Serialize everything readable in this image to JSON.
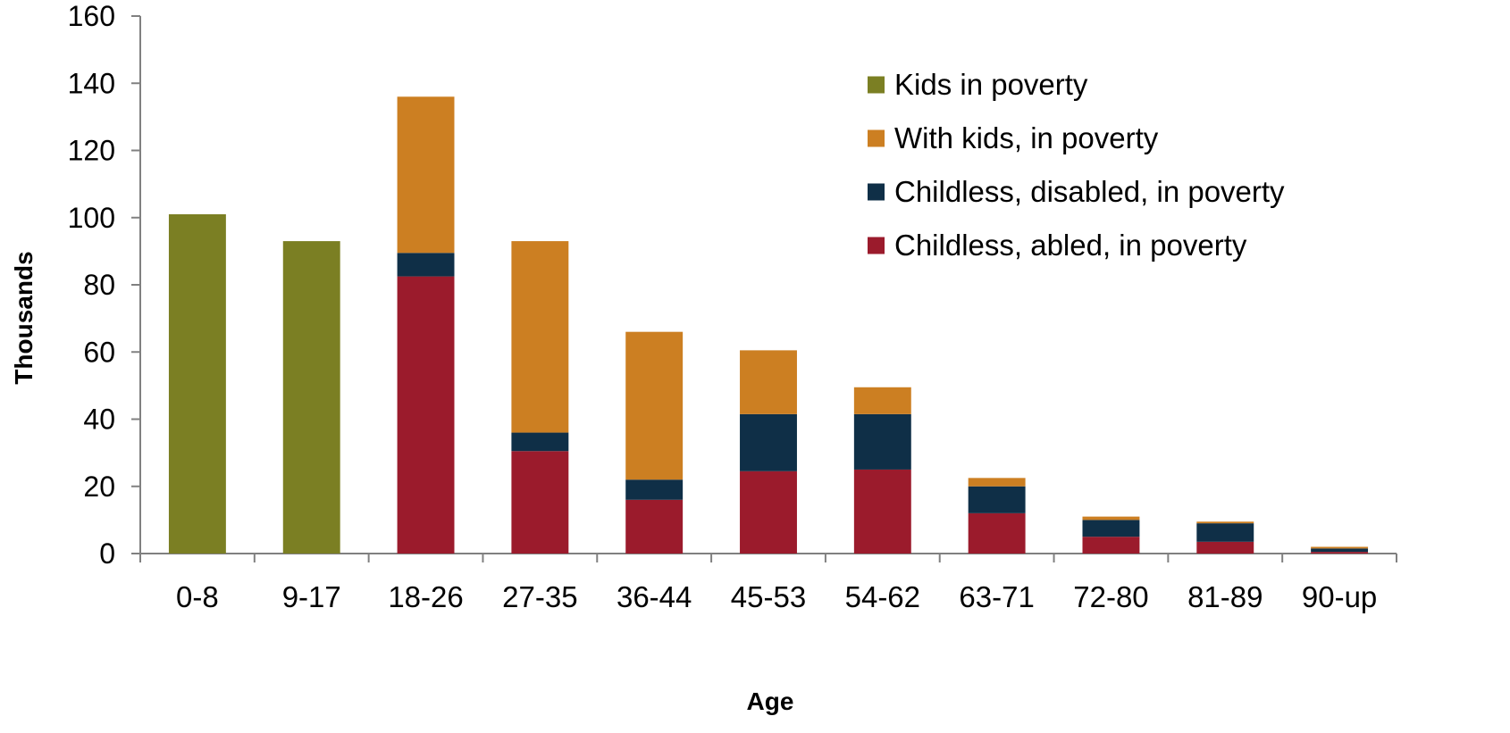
{
  "chart_data": {
    "type": "bar",
    "stacked": true,
    "title": "",
    "xlabel": "Age",
    "ylabel": "Thousands",
    "ylim": [
      0,
      160
    ],
    "yticks": [
      0,
      20,
      40,
      60,
      80,
      100,
      120,
      140,
      160
    ],
    "grid": false,
    "legend_position": "top-right",
    "categories": [
      "0-8",
      "9-17",
      "18-26",
      "27-35",
      "36-44",
      "45-53",
      "54-62",
      "63-71",
      "72-80",
      "81-89",
      "90-up"
    ],
    "series": [
      {
        "name": "Childless, abled, in poverty",
        "color": "#9B1B2C",
        "values": [
          0,
          0,
          82.5,
          30.5,
          16,
          24.5,
          25,
          12,
          5,
          3.5,
          0.5
        ]
      },
      {
        "name": "Childless, disabled, in poverty",
        "color": "#0F2F47",
        "values": [
          0,
          0,
          7,
          5.5,
          6,
          17,
          16.5,
          8,
          5,
          5.5,
          1
        ]
      },
      {
        "name": "With kids, in poverty",
        "color": "#CC7F22",
        "values": [
          0,
          0,
          46.5,
          57,
          44,
          19,
          8,
          2.5,
          1,
          0.5,
          0.5
        ]
      },
      {
        "name": "Kids in poverty",
        "color": "#7B7F23",
        "values": [
          101,
          93,
          0,
          0,
          0,
          0,
          0,
          0,
          0,
          0,
          0
        ]
      }
    ],
    "legend_order": [
      "Kids in poverty",
      "With kids, in poverty",
      "Childless, disabled, in poverty",
      "Childless, abled, in poverty"
    ]
  }
}
